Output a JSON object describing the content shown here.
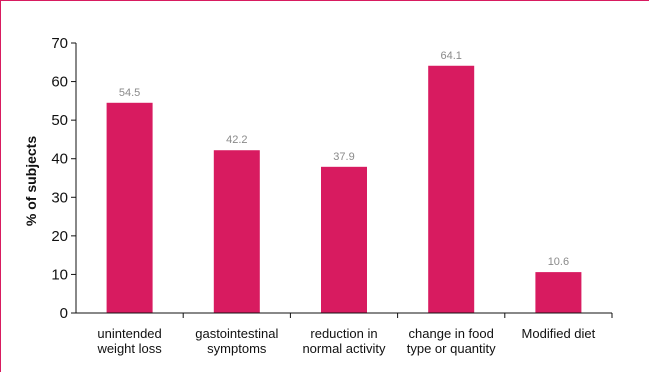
{
  "chart_data": {
    "type": "bar",
    "categories": [
      [
        "unintended",
        "weight loss"
      ],
      [
        "gastointestinal",
        "symptoms"
      ],
      [
        "reduction in",
        "normal activity"
      ],
      [
        "change in food",
        "type or quantity"
      ],
      [
        "Modified diet"
      ]
    ],
    "values": [
      54.5,
      42.2,
      37.9,
      64.1,
      10.6
    ],
    "value_labels": [
      "54.5",
      "42.2",
      "37.9",
      "64.1",
      "10.6"
    ],
    "ylabel": "% of subjects",
    "xlabel": "",
    "ylim": [
      0,
      70
    ],
    "yticks": [
      0,
      10,
      20,
      30,
      40,
      50,
      60,
      70
    ],
    "grid": false,
    "bar_color": "#d81b60",
    "frame_color": "#d81b60"
  }
}
